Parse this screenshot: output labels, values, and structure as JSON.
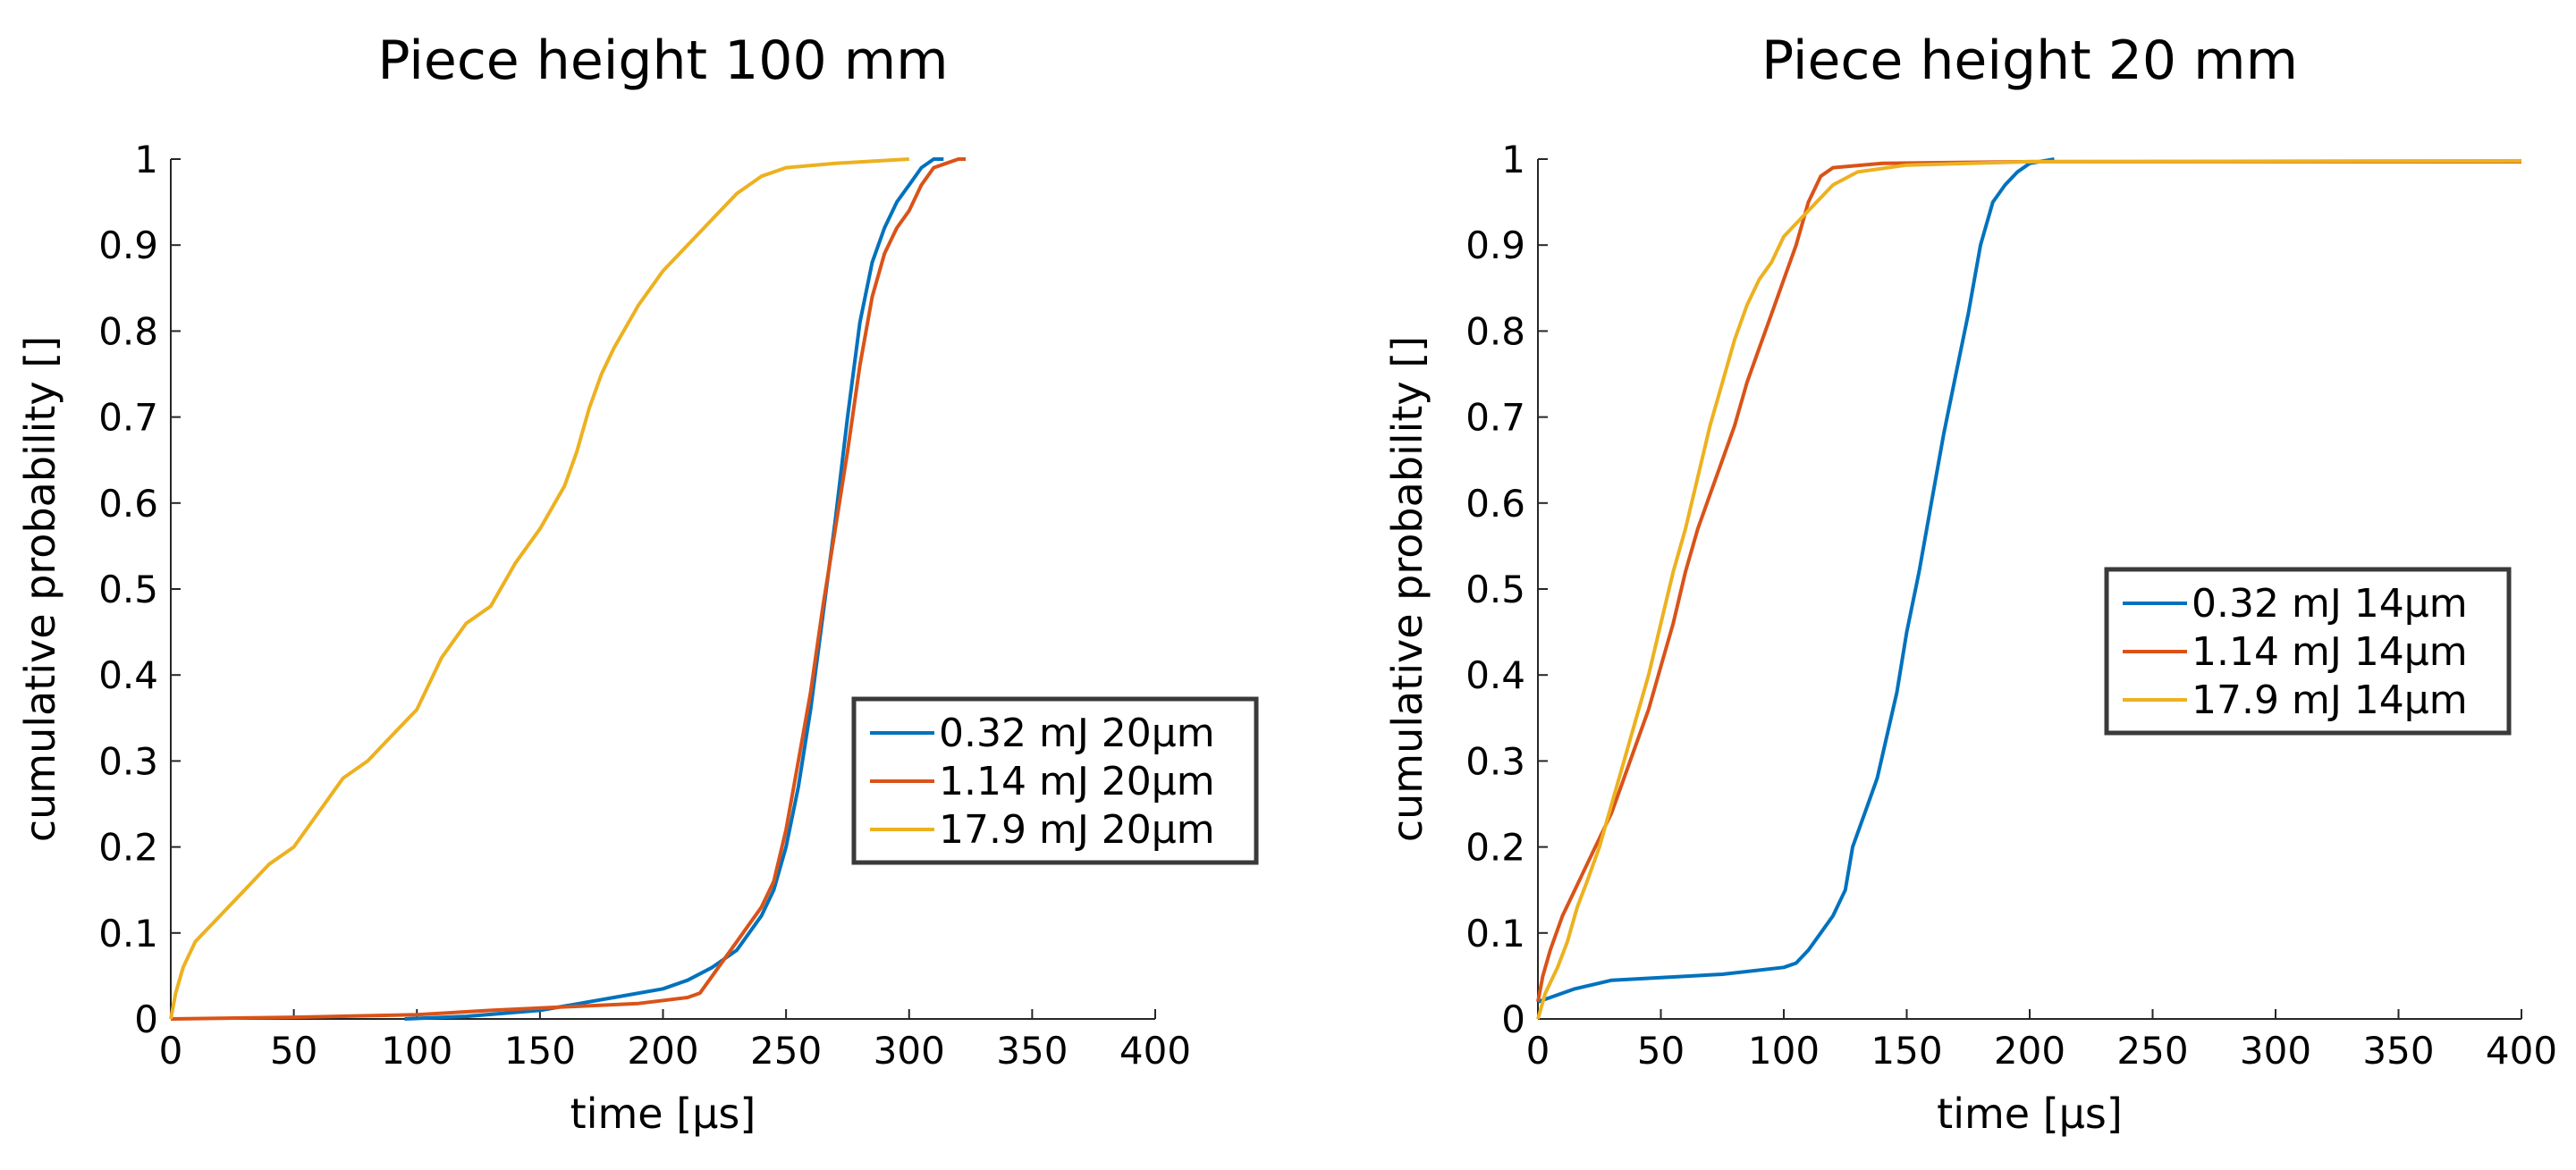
{
  "chart_data": [
    {
      "type": "line",
      "title": "Piece height 100 mm",
      "xlabel": "time [µs]",
      "ylabel": "cumulative probability []",
      "xlim": [
        0,
        400
      ],
      "ylim": [
        0,
        1
      ],
      "xticks": [
        "0",
        "50",
        "100",
        "150",
        "200",
        "250",
        "300",
        "350",
        "400"
      ],
      "yticks": [
        "0",
        "0.1",
        "0.2",
        "0.3",
        "0.4",
        "0.5",
        "0.6",
        "0.7",
        "0.8",
        "0.9",
        "1"
      ],
      "legend_position": "middle-right",
      "series": [
        {
          "name": "0.32 mJ 20µm",
          "color": "#0072BD",
          "points": [
            [
              95,
              0
            ],
            [
              120,
              0.003
            ],
            [
              150,
              0.01
            ],
            [
              170,
              0.02
            ],
            [
              180,
              0.025
            ],
            [
              200,
              0.035
            ],
            [
              210,
              0.045
            ],
            [
              220,
              0.06
            ],
            [
              230,
              0.08
            ],
            [
              240,
              0.12
            ],
            [
              245,
              0.15
            ],
            [
              250,
              0.2
            ],
            [
              255,
              0.27
            ],
            [
              260,
              0.36
            ],
            [
              265,
              0.47
            ],
            [
              270,
              0.58
            ],
            [
              275,
              0.7
            ],
            [
              280,
              0.81
            ],
            [
              285,
              0.88
            ],
            [
              290,
              0.92
            ],
            [
              295,
              0.95
            ],
            [
              300,
              0.97
            ],
            [
              305,
              0.99
            ],
            [
              310,
              1.0
            ],
            [
              314,
              1.0
            ]
          ]
        },
        {
          "name": "1.14 mJ 20µm",
          "color": "#D95319",
          "points": [
            [
              0,
              0
            ],
            [
              50,
              0.002
            ],
            [
              100,
              0.005
            ],
            [
              130,
              0.01
            ],
            [
              160,
              0.014
            ],
            [
              190,
              0.018
            ],
            [
              210,
              0.025
            ],
            [
              215,
              0.03
            ],
            [
              220,
              0.05
            ],
            [
              225,
              0.07
            ],
            [
              230,
              0.09
            ],
            [
              235,
              0.11
            ],
            [
              240,
              0.13
            ],
            [
              245,
              0.16
            ],
            [
              250,
              0.22
            ],
            [
              255,
              0.3
            ],
            [
              260,
              0.38
            ],
            [
              265,
              0.48
            ],
            [
              270,
              0.57
            ],
            [
              275,
              0.66
            ],
            [
              280,
              0.76
            ],
            [
              285,
              0.84
            ],
            [
              290,
              0.89
            ],
            [
              295,
              0.92
            ],
            [
              300,
              0.94
            ],
            [
              305,
              0.97
            ],
            [
              310,
              0.99
            ],
            [
              315,
              0.995
            ],
            [
              320,
              1.0
            ],
            [
              323,
              1.0
            ]
          ]
        },
        {
          "name": "17.9 mJ 20µm",
          "color": "#EDB120",
          "points": [
            [
              0,
              0
            ],
            [
              2,
              0.03
            ],
            [
              5,
              0.06
            ],
            [
              10,
              0.09
            ],
            [
              20,
              0.12
            ],
            [
              30,
              0.15
            ],
            [
              40,
              0.18
            ],
            [
              50,
              0.2
            ],
            [
              60,
              0.24
            ],
            [
              70,
              0.28
            ],
            [
              80,
              0.3
            ],
            [
              90,
              0.33
            ],
            [
              100,
              0.36
            ],
            [
              110,
              0.42
            ],
            [
              120,
              0.46
            ],
            [
              130,
              0.48
            ],
            [
              140,
              0.53
            ],
            [
              150,
              0.57
            ],
            [
              160,
              0.62
            ],
            [
              165,
              0.66
            ],
            [
              170,
              0.71
            ],
            [
              175,
              0.75
            ],
            [
              180,
              0.78
            ],
            [
              190,
              0.83
            ],
            [
              200,
              0.87
            ],
            [
              210,
              0.9
            ],
            [
              220,
              0.93
            ],
            [
              230,
              0.96
            ],
            [
              240,
              0.98
            ],
            [
              250,
              0.99
            ],
            [
              270,
              0.995
            ],
            [
              300,
              1.0
            ]
          ]
        }
      ]
    },
    {
      "type": "line",
      "title": "Piece height 20 mm",
      "xlabel": "time [µs]",
      "ylabel": "cumulative probability []",
      "xlim": [
        0,
        400
      ],
      "ylim": [
        0,
        1
      ],
      "xticks": [
        "0",
        "50",
        "100",
        "150",
        "200",
        "250",
        "300",
        "350",
        "400"
      ],
      "yticks": [
        "0",
        "0.1",
        "0.2",
        "0.3",
        "0.4",
        "0.5",
        "0.6",
        "0.7",
        "0.8",
        "0.9",
        "1"
      ],
      "legend_position": "middle-right",
      "series": [
        {
          "name": "0.32 mJ 14µm",
          "color": "#0072BD",
          "points": [
            [
              0,
              0.02
            ],
            [
              5,
              0.025
            ],
            [
              15,
              0.035
            ],
            [
              30,
              0.045
            ],
            [
              50,
              0.048
            ],
            [
              75,
              0.052
            ],
            [
              100,
              0.06
            ],
            [
              105,
              0.065
            ],
            [
              110,
              0.08
            ],
            [
              115,
              0.1
            ],
            [
              120,
              0.12
            ],
            [
              125,
              0.15
            ],
            [
              128,
              0.2
            ],
            [
              133,
              0.24
            ],
            [
              138,
              0.28
            ],
            [
              142,
              0.33
            ],
            [
              146,
              0.38
            ],
            [
              150,
              0.45
            ],
            [
              155,
              0.52
            ],
            [
              160,
              0.6
            ],
            [
              165,
              0.68
            ],
            [
              170,
              0.75
            ],
            [
              175,
              0.82
            ],
            [
              180,
              0.9
            ],
            [
              185,
              0.95
            ],
            [
              190,
              0.97
            ],
            [
              195,
              0.985
            ],
            [
              200,
              0.995
            ],
            [
              210,
              1.0
            ]
          ]
        },
        {
          "name": "1.14 mJ 14µm",
          "color": "#D95319",
          "points": [
            [
              0,
              0.02
            ],
            [
              2,
              0.05
            ],
            [
              5,
              0.08
            ],
            [
              10,
              0.12
            ],
            [
              15,
              0.15
            ],
            [
              20,
              0.18
            ],
            [
              25,
              0.21
            ],
            [
              30,
              0.24
            ],
            [
              35,
              0.28
            ],
            [
              40,
              0.32
            ],
            [
              45,
              0.36
            ],
            [
              50,
              0.41
            ],
            [
              55,
              0.46
            ],
            [
              60,
              0.52
            ],
            [
              65,
              0.57
            ],
            [
              70,
              0.61
            ],
            [
              75,
              0.65
            ],
            [
              80,
              0.69
            ],
            [
              85,
              0.74
            ],
            [
              90,
              0.78
            ],
            [
              95,
              0.82
            ],
            [
              100,
              0.86
            ],
            [
              105,
              0.9
            ],
            [
              110,
              0.95
            ],
            [
              115,
              0.98
            ],
            [
              120,
              0.99
            ],
            [
              140,
              0.995
            ],
            [
              200,
              0.997
            ],
            [
              400,
              0.997
            ]
          ]
        },
        {
          "name": "17.9 mJ 14µm",
          "color": "#EDB120",
          "points": [
            [
              0,
              0.0
            ],
            [
              3,
              0.03
            ],
            [
              8,
              0.06
            ],
            [
              12,
              0.09
            ],
            [
              16,
              0.13
            ],
            [
              20,
              0.16
            ],
            [
              25,
              0.2
            ],
            [
              30,
              0.25
            ],
            [
              35,
              0.3
            ],
            [
              40,
              0.35
            ],
            [
              45,
              0.4
            ],
            [
              50,
              0.46
            ],
            [
              55,
              0.52
            ],
            [
              60,
              0.57
            ],
            [
              65,
              0.63
            ],
            [
              70,
              0.69
            ],
            [
              75,
              0.74
            ],
            [
              80,
              0.79
            ],
            [
              85,
              0.83
            ],
            [
              90,
              0.86
            ],
            [
              95,
              0.88
            ],
            [
              100,
              0.91
            ],
            [
              110,
              0.94
            ],
            [
              120,
              0.97
            ],
            [
              130,
              0.985
            ],
            [
              150,
              0.993
            ],
            [
              200,
              0.997
            ],
            [
              400,
              0.998
            ]
          ]
        }
      ]
    }
  ]
}
